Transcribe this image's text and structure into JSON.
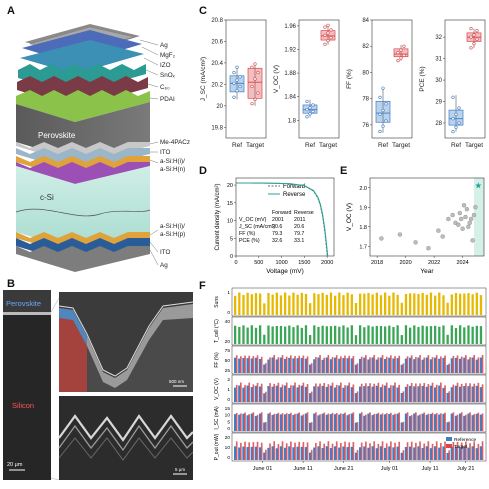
{
  "panel_labels": {
    "A": "A",
    "B": "B",
    "C": "C",
    "D": "D",
    "E": "E",
    "F": "F"
  },
  "stack": {
    "top_labels": [
      "Ag",
      "MgF₂",
      "IZO",
      "SnOₓ",
      "C₆₀",
      "PDAI"
    ],
    "perovskite_label": "Perovskite",
    "mid_labels": [
      "Me-4PACz",
      "ITO",
      "a-Si:H(i)/",
      "a-Si:H(n)"
    ],
    "csi_label": "c-Si",
    "bottom_labels": [
      "a-Si:H(i)/",
      "a-Si:H(p)",
      "ITO",
      "Ag"
    ]
  },
  "sem": {
    "perovskite": "Perovskite",
    "silicon": "Silicon",
    "scale_left": "20 μm",
    "scale_top": "500 nm",
    "scale_bottom": "5 μm"
  },
  "colors": {
    "ref": "#3f7fc6",
    "target": "#d9474b",
    "teal": "#2aa198",
    "sun": "#e6b800",
    "green": "#3aa655"
  },
  "chart_data": [
    {
      "type": "box",
      "panel": "C",
      "ylabel": "J_SC (mA/cm²)",
      "categories": [
        "Ref",
        "Target"
      ],
      "yticks": [
        19.8,
        20.0,
        20.2,
        20.4,
        20.6,
        20.8
      ],
      "ylim": [
        19.7,
        20.8
      ],
      "boxes": [
        {
          "q1": 20.13,
          "median": 20.21,
          "q3": 20.28,
          "min": 20.06,
          "max": 20.36,
          "points": [
            20.08,
            20.14,
            20.18,
            20.21,
            20.24,
            20.27,
            20.31,
            20.36
          ]
        },
        {
          "q1": 20.07,
          "median": 20.22,
          "q3": 20.35,
          "min": 20.0,
          "max": 20.39,
          "points": [
            20.02,
            20.06,
            20.12,
            20.18,
            20.25,
            20.31,
            20.36,
            20.39
          ]
        }
      ]
    },
    {
      "type": "box",
      "panel": "C",
      "ylabel": "V_OC (V)",
      "categories": [
        "Ref",
        "Target"
      ],
      "yticks": [
        1.8,
        1.84,
        1.88,
        1.92,
        1.96
      ],
      "ylim": [
        1.77,
        1.97
      ],
      "boxes": [
        {
          "q1": 1.812,
          "median": 1.818,
          "q3": 1.826,
          "min": 1.805,
          "max": 1.835,
          "points": [
            1.806,
            1.811,
            1.815,
            1.818,
            1.821,
            1.826,
            1.832
          ]
        },
        {
          "q1": 1.936,
          "median": 1.943,
          "q3": 1.952,
          "min": 1.928,
          "max": 1.961,
          "points": [
            1.929,
            1.935,
            1.94,
            1.944,
            1.948,
            1.953,
            1.958,
            1.961
          ]
        }
      ]
    },
    {
      "type": "box",
      "panel": "C",
      "ylabel": "FF (%)",
      "categories": [
        "Ref",
        "Target"
      ],
      "yticks": [
        76,
        78,
        80,
        82,
        84
      ],
      "ylim": [
        75,
        84
      ],
      "boxes": [
        {
          "q1": 76.2,
          "median": 76.9,
          "q3": 77.8,
          "min": 75.4,
          "max": 78.9,
          "points": [
            75.5,
            75.9,
            76.3,
            76.8,
            77.1,
            77.6,
            78.1,
            78.8
          ]
        },
        {
          "q1": 81.2,
          "median": 81.4,
          "q3": 81.8,
          "min": 80.9,
          "max": 82.1,
          "points": [
            80.9,
            81.1,
            81.3,
            81.5,
            81.7,
            82.0
          ]
        }
      ]
    },
    {
      "type": "box",
      "panel": "C",
      "ylabel": "PCE (%)",
      "categories": [
        "Ref",
        "Target"
      ],
      "yticks": [
        28,
        29,
        30,
        31,
        32
      ],
      "ylim": [
        27.3,
        32.8
      ],
      "boxes": [
        {
          "q1": 27.9,
          "median": 28.2,
          "q3": 28.6,
          "min": 27.6,
          "max": 29.3,
          "points": [
            27.6,
            27.8,
            28.0,
            28.2,
            28.4,
            28.7,
            29.2
          ]
        },
        {
          "q1": 31.8,
          "median": 32.0,
          "q3": 32.2,
          "min": 31.5,
          "max": 32.4,
          "points": [
            31.5,
            31.7,
            31.9,
            32.0,
            32.1,
            32.3,
            32.4
          ]
        }
      ]
    },
    {
      "type": "line",
      "panel": "D",
      "xlabel": "Voltage (mV)",
      "ylabel": "Current density (mA/cm²)",
      "xticks": [
        0,
        500,
        1000,
        1500,
        2000
      ],
      "yticks": [
        0,
        5,
        10,
        15,
        20
      ],
      "xlim": [
        0,
        2150
      ],
      "ylim": [
        0,
        22
      ],
      "series": [
        {
          "name": "Forward",
          "x": [
            0,
            300,
            600,
            900,
            1200,
            1500,
            1700,
            1800,
            1850,
            1900,
            1950,
            2001
          ],
          "y": [
            20.6,
            20.58,
            20.55,
            20.5,
            20.35,
            19.8,
            18.3,
            16.2,
            14.2,
            11.1,
            6.5,
            0
          ]
        },
        {
          "name": "Reverse",
          "x": [
            0,
            300,
            600,
            900,
            1200,
            1500,
            1700,
            1800,
            1850,
            1900,
            1950,
            2011
          ],
          "y": [
            20.6,
            20.59,
            20.56,
            20.51,
            20.37,
            19.85,
            18.45,
            16.5,
            14.6,
            11.7,
            7.4,
            0
          ]
        }
      ],
      "table": {
        "headers": [
          "",
          "Forward",
          "Reverse"
        ],
        "rows": [
          [
            "V_OC (mV)",
            "2001",
            "2011"
          ],
          [
            "J_SC (mA/cm²)",
            "20.6",
            "20.6"
          ],
          [
            "FF (%)",
            "79.3",
            "79.7"
          ],
          [
            "PCE (%)",
            "32.6",
            "33.1"
          ]
        ]
      }
    },
    {
      "type": "scatter",
      "panel": "E",
      "xlabel": "Year",
      "ylabel": "V_OC (V)",
      "xticks": [
        2018,
        2020,
        2022,
        2024
      ],
      "yticks": [
        1.7,
        1.8,
        1.9,
        2.0
      ],
      "xlim": [
        2017.5,
        2025.5
      ],
      "ylim": [
        1.65,
        2.05
      ],
      "points": [
        [
          2018.3,
          1.74
        ],
        [
          2019.6,
          1.76
        ],
        [
          2020.7,
          1.72
        ],
        [
          2021.6,
          1.69
        ],
        [
          2022.3,
          1.78
        ],
        [
          2022.6,
          1.75
        ],
        [
          2023.0,
          1.84
        ],
        [
          2023.3,
          1.86
        ],
        [
          2023.5,
          1.82
        ],
        [
          2023.7,
          1.81
        ],
        [
          2023.8,
          1.87
        ],
        [
          2023.9,
          1.84
        ],
        [
          2024.0,
          1.79
        ],
        [
          2024.1,
          1.91
        ],
        [
          2024.2,
          1.85
        ],
        [
          2024.3,
          1.89
        ],
        [
          2024.4,
          1.8
        ],
        [
          2024.5,
          1.82
        ],
        [
          2024.6,
          1.84
        ],
        [
          2024.7,
          1.73
        ],
        [
          2024.8,
          1.86
        ],
        [
          2024.9,
          1.9
        ]
      ],
      "highlight": {
        "x": 2025.1,
        "y": 2.011
      },
      "highlight_band": [
        2024.8,
        2025.5
      ]
    },
    {
      "type": "timeseries-bars",
      "panel": "F",
      "xticks": [
        "June 01",
        "June 11",
        "June 21",
        "July 01",
        "July 11",
        "July 21"
      ],
      "rows": [
        {
          "ylabel": "Suns",
          "yticks": [
            "1",
            "0"
          ],
          "color": "#e6b800",
          "ref_level": 0.9,
          "target_level": null
        },
        {
          "ylabel": "T_cell (°C)",
          "yticks": [
            "40",
            "20"
          ],
          "color": "#3aa655",
          "ref_level": 0.75,
          "target_level": null
        },
        {
          "ylabel": "FF (%)",
          "yticks": [
            "75",
            "50",
            "25"
          ],
          "color": "#3f7fc6",
          "ref_level": 0.62,
          "target_level": 0.72
        },
        {
          "ylabel": "V_OC (V)",
          "yticks": [
            "2",
            "1",
            "0"
          ],
          "color": "#3f7fc6",
          "ref_level": 0.66,
          "target_level": 0.78
        },
        {
          "ylabel": "I_SC (mA)",
          "yticks": [
            "15",
            "10",
            "5",
            "0"
          ],
          "color": "#3f7fc6",
          "ref_level": 0.7,
          "target_level": 0.75
        },
        {
          "ylabel": "P_out (mW)",
          "yticks": [
            "20",
            "10",
            "0"
          ],
          "color": "#3f7fc6",
          "ref_level": 0.55,
          "target_level": 0.75
        }
      ],
      "legend": [
        "Reference",
        "Target"
      ]
    }
  ]
}
